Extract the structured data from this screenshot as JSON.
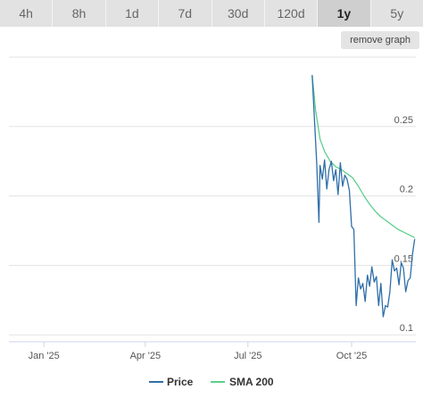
{
  "tabs": [
    {
      "label": "4h",
      "active": false
    },
    {
      "label": "8h",
      "active": false
    },
    {
      "label": "1d",
      "active": false
    },
    {
      "label": "7d",
      "active": false
    },
    {
      "label": "30d",
      "active": false
    },
    {
      "label": "120d",
      "active": false
    },
    {
      "label": "1y",
      "active": true
    },
    {
      "label": "5y",
      "active": false
    }
  ],
  "remove_graph_label": "remove graph",
  "chart_data": {
    "type": "line",
    "x_tick_labels": [
      "Jan '25",
      "Apr '25",
      "Jul '25",
      "Oct '25"
    ],
    "y_tick_labels": [
      "0.25",
      "0.2",
      "0.15",
      "0.1"
    ],
    "ylim": [
      0.095,
      0.3
    ],
    "grid": true,
    "legend_position": "bottom-center",
    "series": [
      {
        "name": "Price",
        "color": "#2f6fa8",
        "x": [
          "2025-08-27",
          "2025-08-29",
          "2025-08-31",
          "2025-09-02",
          "2025-09-03",
          "2025-09-05",
          "2025-09-07",
          "2025-09-09",
          "2025-09-11",
          "2025-09-13",
          "2025-09-15",
          "2025-09-17",
          "2025-09-19",
          "2025-09-21",
          "2025-09-23",
          "2025-09-25",
          "2025-09-27",
          "2025-09-29",
          "2025-10-01",
          "2025-10-03",
          "2025-10-05",
          "2025-10-07",
          "2025-10-09",
          "2025-10-11",
          "2025-10-13",
          "2025-10-15",
          "2025-10-17",
          "2025-10-19",
          "2025-10-21",
          "2025-10-23",
          "2025-10-25",
          "2025-10-27",
          "2025-10-29",
          "2025-10-31",
          "2025-11-02",
          "2025-11-04",
          "2025-11-06",
          "2025-11-08",
          "2025-11-10",
          "2025-11-12",
          "2025-11-14",
          "2025-11-16",
          "2025-11-18",
          "2025-11-20",
          "2025-11-22",
          "2025-11-24",
          "2025-11-26"
        ],
        "values": [
          0.287,
          0.256,
          0.225,
          0.181,
          0.222,
          0.212,
          0.226,
          0.205,
          0.219,
          0.225,
          0.211,
          0.219,
          0.201,
          0.224,
          0.207,
          0.215,
          0.212,
          0.204,
          0.178,
          0.176,
          0.121,
          0.141,
          0.133,
          0.137,
          0.124,
          0.143,
          0.135,
          0.149,
          0.138,
          0.142,
          0.121,
          0.137,
          0.113,
          0.121,
          0.12,
          0.131,
          0.154,
          0.146,
          0.148,
          0.136,
          0.152,
          0.148,
          0.131,
          0.139,
          0.141,
          0.158,
          0.169
        ]
      },
      {
        "name": "SMA 200",
        "color": "#5ccf8c",
        "x": [
          "2025-08-27",
          "2025-08-30",
          "2025-09-03",
          "2025-09-07",
          "2025-09-12",
          "2025-09-17",
          "2025-09-22",
          "2025-09-27",
          "2025-10-02",
          "2025-10-07",
          "2025-10-12",
          "2025-10-17",
          "2025-10-22",
          "2025-10-27",
          "2025-11-01",
          "2025-11-06",
          "2025-11-11",
          "2025-11-16",
          "2025-11-21",
          "2025-11-26"
        ],
        "values": [
          0.287,
          0.262,
          0.241,
          0.232,
          0.225,
          0.221,
          0.219,
          0.216,
          0.213,
          0.207,
          0.2,
          0.194,
          0.189,
          0.185,
          0.182,
          0.179,
          0.176,
          0.174,
          0.172,
          0.17
        ]
      }
    ]
  }
}
